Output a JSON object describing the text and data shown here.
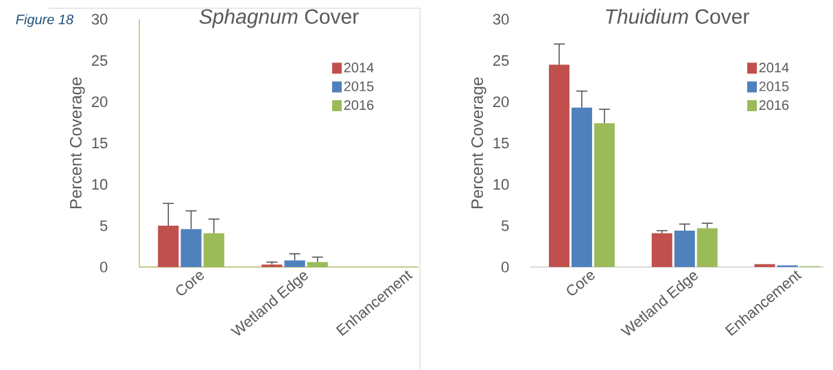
{
  "chart_data": [
    {
      "type": "bar",
      "title": "*Sphagnum* Cover",
      "ylabel": "Percent Coverage",
      "annotations": [
        "Figure 18"
      ],
      "categories": [
        "Core",
        "Wetland Edge",
        "Enhancement"
      ],
      "series": [
        {
          "name": "2014",
          "color": "#c0504d",
          "values": [
            5.0,
            0.3,
            0
          ],
          "errors": [
            [
              5.0,
              7.7
            ],
            [
              0.3,
              0.6
            ],
            null
          ]
        },
        {
          "name": "2015",
          "color": "#4f81bd",
          "values": [
            4.6,
            0.8,
            0
          ],
          "errors": [
            [
              4.6,
              6.8
            ],
            [
              0.8,
              1.6
            ],
            null
          ]
        },
        {
          "name": "2016",
          "color": "#9bbb59",
          "values": [
            4.1,
            0.6,
            0
          ],
          "errors": [
            [
              4.1,
              5.8
            ],
            [
              0.6,
              1.2
            ],
            null
          ]
        }
      ],
      "ylim": [
        0,
        30
      ],
      "yticks": [
        0,
        5,
        10,
        15,
        20,
        25,
        30
      ],
      "grid": false,
      "legend": "top right"
    },
    {
      "type": "bar",
      "title": "*Thuidium* Cover",
      "ylabel": "Percent Coverage",
      "categories": [
        "Core",
        "Wetland Edge",
        "Enhancement"
      ],
      "series": [
        {
          "name": "2014",
          "color": "#c0504d",
          "values": [
            24.5,
            4.1,
            0.35
          ],
          "errors": [
            [
              24.5,
              27.0
            ],
            [
              4.1,
              4.4
            ],
            null
          ]
        },
        {
          "name": "2015",
          "color": "#4f81bd",
          "values": [
            19.3,
            4.4,
            0.2
          ],
          "errors": [
            [
              19.3,
              21.3
            ],
            [
              4.4,
              5.2
            ],
            null
          ]
        },
        {
          "name": "2016",
          "color": "#9bbb59",
          "values": [
            17.4,
            4.7,
            0.1
          ],
          "errors": [
            [
              17.4,
              19.1
            ],
            [
              4.7,
              5.3
            ],
            null
          ]
        }
      ],
      "ylim": [
        0,
        30
      ],
      "yticks": [
        0,
        5,
        10,
        15,
        20,
        25,
        30
      ],
      "grid": false,
      "legend": "top right"
    }
  ]
}
